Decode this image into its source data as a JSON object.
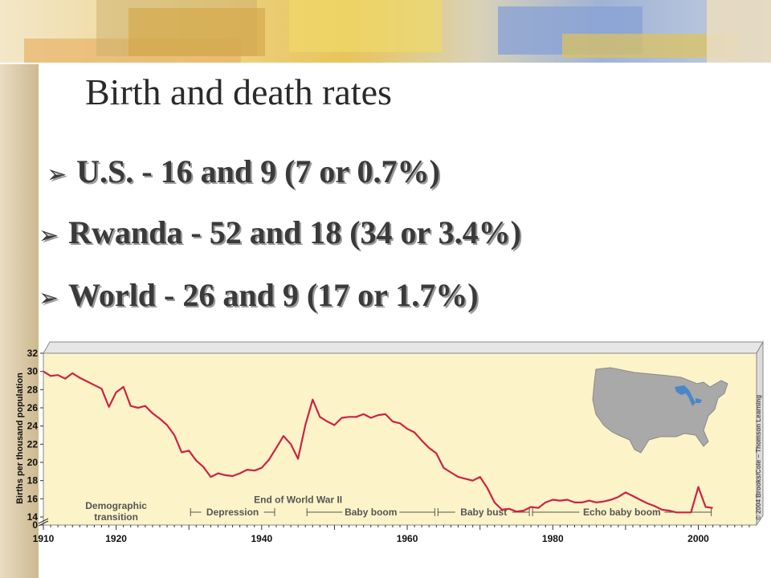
{
  "slide": {
    "title": "Birth and death rates",
    "bullets": [
      {
        "text": "U.S. - 16 and 9 (7 or 0.7%)"
      },
      {
        "text": "Rwanda - 52 and 18 (34 or 3.4%)"
      },
      {
        "text": "World - 26 and 9 (17 or 1.7%)"
      }
    ],
    "bullet_icon": "arrow-right-icon"
  },
  "colors": {
    "plot_background": "#fdf3c8",
    "line": "#cc2244",
    "background": "#ffffff",
    "map_fill": "#a9a9a9",
    "great_lakes": "#4a86c8"
  },
  "chart_data": {
    "type": "line",
    "ylabel": "Births per thousand population",
    "xlim": [
      1910,
      2008
    ],
    "ylim": [
      0,
      32
    ],
    "x_ticks": [
      "1910",
      "1920",
      "1940",
      "1960",
      "1980",
      "2000"
    ],
    "y_ticks": [
      "0",
      "14",
      "16",
      "18",
      "20",
      "22",
      "24",
      "26",
      "28",
      "30",
      "32"
    ],
    "broken_axis": {
      "from": 0,
      "to": 14
    },
    "grid": false,
    "series": [
      {
        "x": [
          1910,
          1911,
          1912,
          1913,
          1914,
          1915,
          1916,
          1917,
          1918,
          1919,
          1920,
          1921,
          1922,
          1923,
          1924,
          1925,
          1926,
          1927,
          1928,
          1929,
          1930,
          1931,
          1932,
          1933,
          1934,
          1935,
          1936,
          1937,
          1938,
          1939,
          1940,
          1941,
          1942,
          1943,
          1944,
          1945,
          1946,
          1947,
          1948,
          1949,
          1950,
          1951,
          1952,
          1953,
          1954,
          1955,
          1956,
          1957,
          1958,
          1959,
          1960,
          1961,
          1962,
          1963,
          1964,
          1965,
          1966,
          1967,
          1968,
          1969,
          1970,
          1971,
          1972,
          1973,
          1974,
          1975,
          1976,
          1977,
          1978,
          1979,
          1980,
          1981,
          1982,
          1983,
          1984,
          1985,
          1986,
          1987,
          1988,
          1989,
          1990,
          1991,
          1992,
          1993,
          1994,
          1995,
          1996,
          1997,
          1998,
          1999,
          2000,
          2001,
          2002
        ],
        "y": [
          30.0,
          29.5,
          29.6,
          29.2,
          29.8,
          29.3,
          28.9,
          28.5,
          28.1,
          26.1,
          27.7,
          28.3,
          26.2,
          26.0,
          26.2,
          25.4,
          24.8,
          24.1,
          23.0,
          21.1,
          21.3,
          20.2,
          19.5,
          18.4,
          18.8,
          18.6,
          18.5,
          18.8,
          19.2,
          19.1,
          19.4,
          20.3,
          21.6,
          22.9,
          22.0,
          20.4,
          24.1,
          26.9,
          25.0,
          24.5,
          24.1,
          24.9,
          25.0,
          25.0,
          25.3,
          24.9,
          25.2,
          25.3,
          24.5,
          24.3,
          23.7,
          23.3,
          22.4,
          21.6,
          21.0,
          19.4,
          18.9,
          18.4,
          18.2,
          18.0,
          18.4,
          17.2,
          15.6,
          14.8,
          14.9,
          14.6,
          14.7,
          15.1,
          15.0,
          15.6,
          15.9,
          15.8,
          15.9,
          15.6,
          15.6,
          15.8,
          15.6,
          15.7,
          15.9,
          16.2,
          16.7,
          16.3,
          15.9,
          15.5,
          15.2,
          14.8,
          14.7,
          14.5,
          14.5,
          14.5,
          17.3,
          15.1,
          15.0
        ]
      }
    ],
    "periods": [
      {
        "label": "Demographic\ntransition",
        "from": 1910,
        "to": 1930
      },
      {
        "label": "Depression",
        "from": 1930,
        "to": 1942
      },
      {
        "label": "Baby boom",
        "from": 1946,
        "to": 1964
      },
      {
        "label": "Baby bust",
        "from": 1964,
        "to": 1977
      },
      {
        "label": "Echo baby boom",
        "from": 1977,
        "to": 2002
      }
    ],
    "annotations": [
      {
        "label": "End of World War II",
        "x": 1945
      }
    ],
    "credit": "© 2004 Brooks/Cole – Thomson Learning"
  }
}
